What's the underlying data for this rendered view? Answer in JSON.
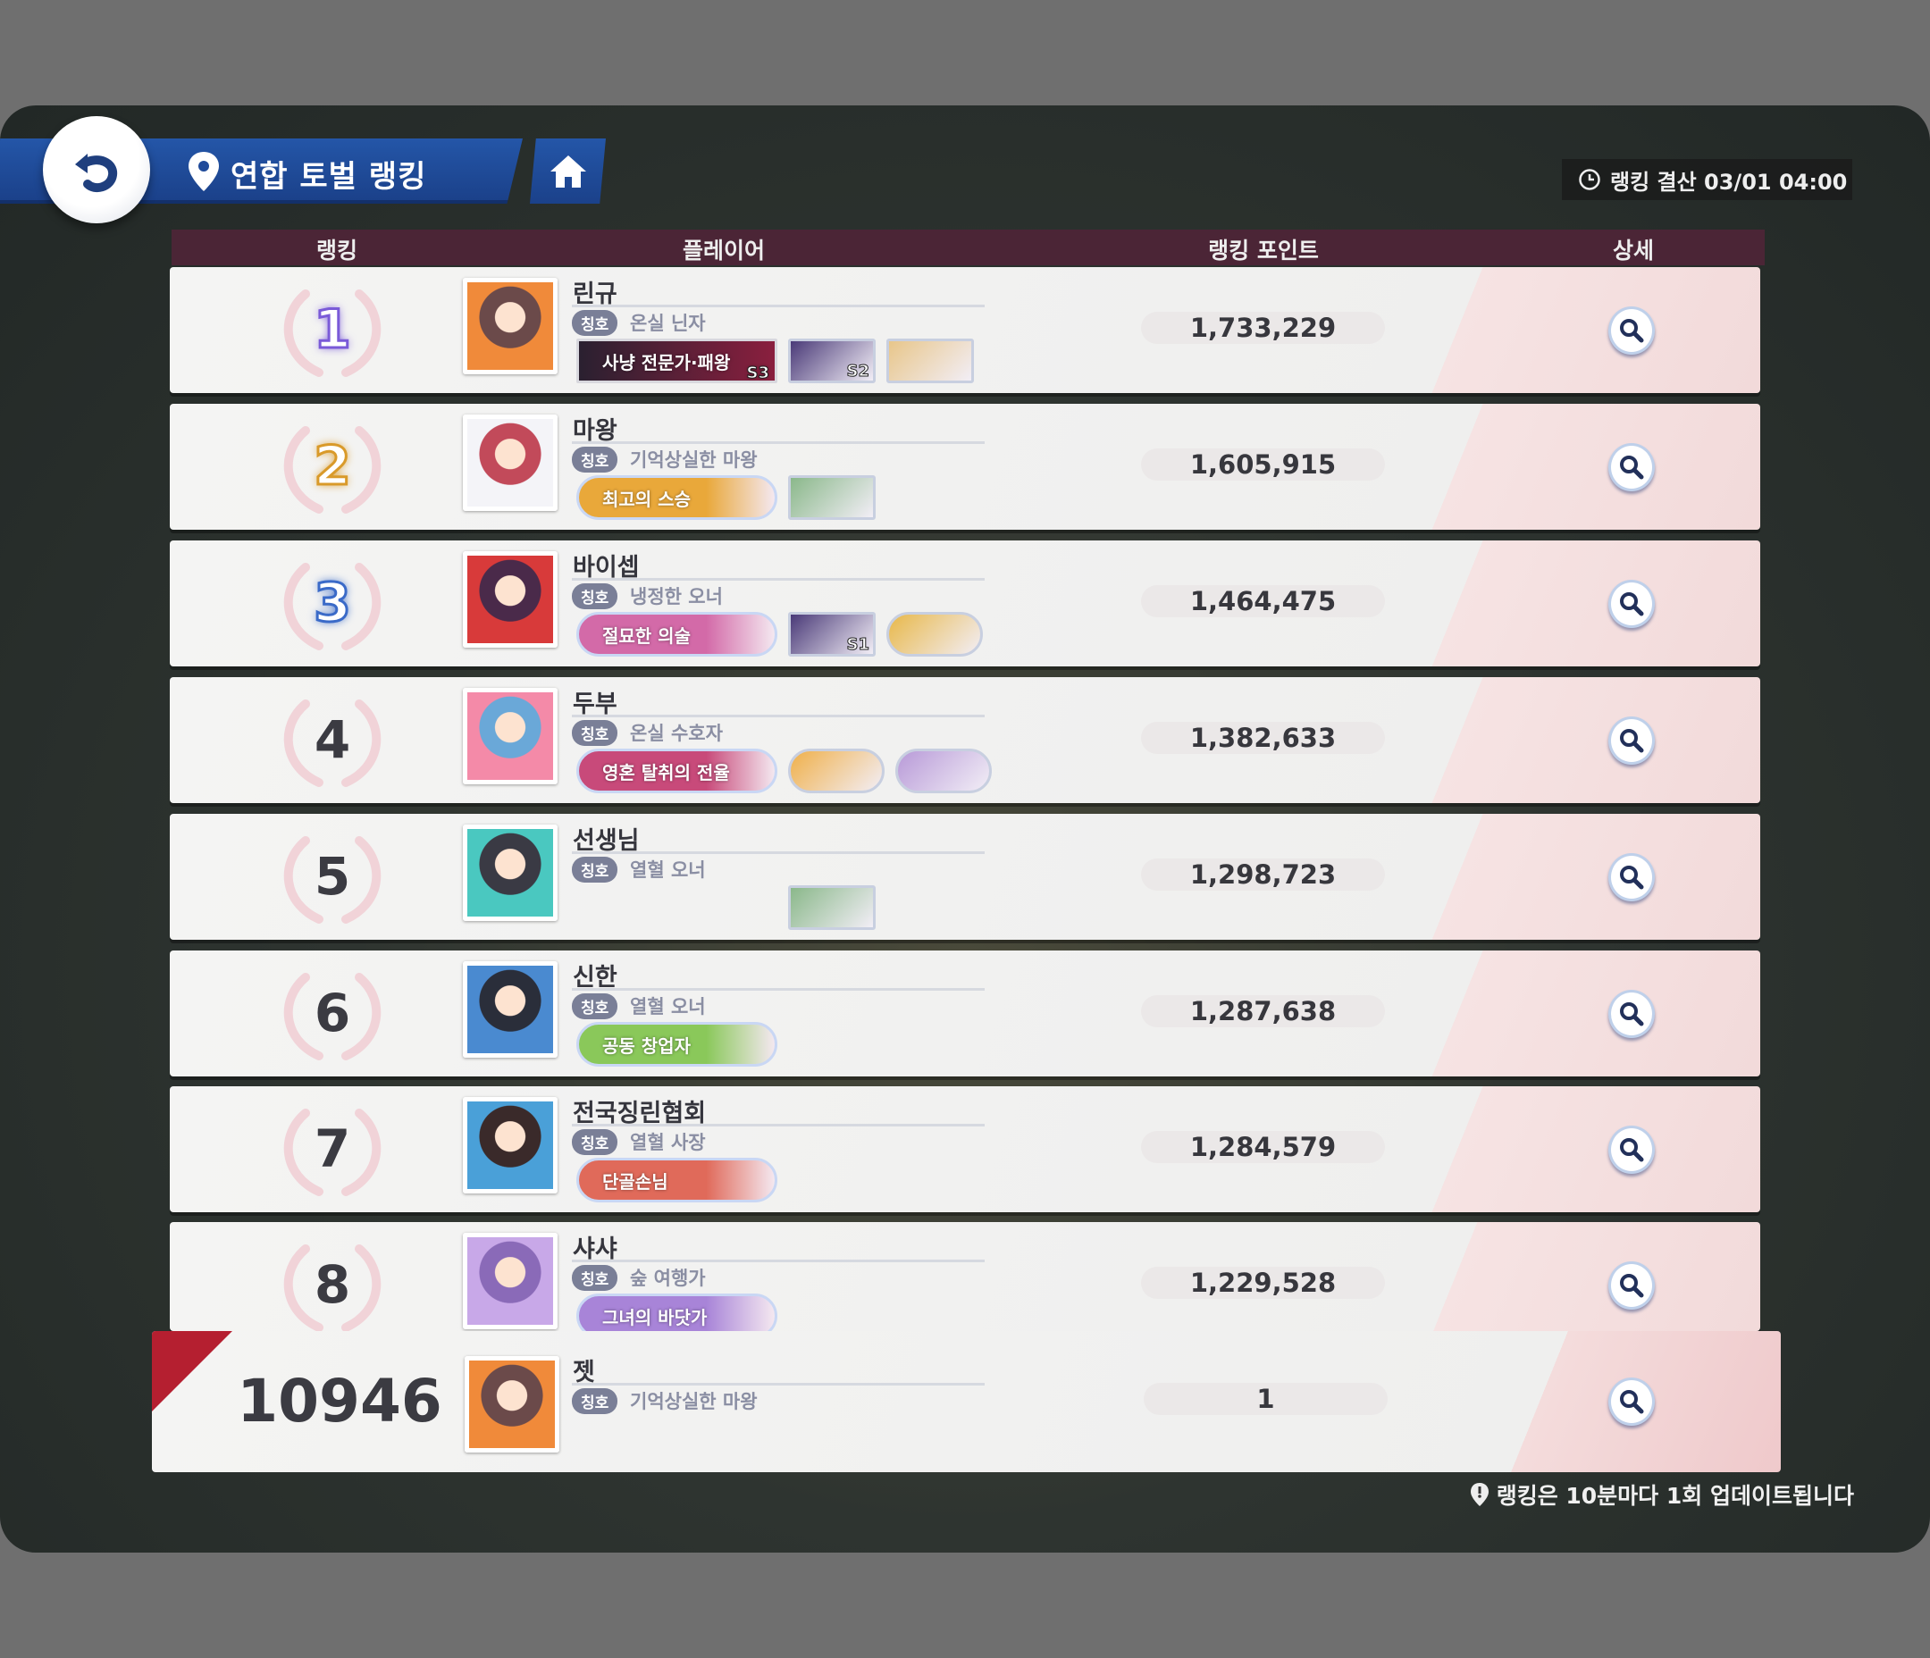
{
  "header": {
    "title": "연합 토벌 랭킹",
    "timer": "랭킹 결산 03/01 04:00"
  },
  "columns": {
    "rank": "랭킹",
    "player": "플레이어",
    "points": "랭킹 포인트",
    "detail": "상세"
  },
  "title_tag": "칭호",
  "colors": {
    "accent_blue": "#1f4a9a",
    "header_maroon": "#4b2536",
    "my_rank_corner": "#b51f30"
  },
  "rows": [
    {
      "rank": "1",
      "medal_color": "#7a5ad8",
      "name": "린규",
      "title": "온실 닌자",
      "points": "1,733,229",
      "avatar": [
        "#f08a3a",
        "#6b4a4a"
      ],
      "badges": [
        {
          "type": "banner-dark",
          "text": "사냥 전문가·패왕",
          "label": "S3"
        },
        {
          "type": "portrait",
          "label": "S2",
          "color": "#4a3a78"
        },
        {
          "type": "portrait",
          "label": "",
          "color": "#e8c68a"
        }
      ]
    },
    {
      "rank": "2",
      "medal_color": "#d99a2a",
      "name": "마왕",
      "title": "기억상실한 마왕",
      "points": "1,605,915",
      "avatar": [
        "#f4f4f8",
        "#c24a5a"
      ],
      "badges": [
        {
          "type": "banner",
          "text": "최고의 스승",
          "color": "#e9a83a"
        },
        {
          "type": "portrait",
          "label": "",
          "color": "#8ab88a"
        }
      ]
    },
    {
      "rank": "3",
      "medal_color": "#3a6ac8",
      "name": "바이셉",
      "title": "냉정한 오너",
      "points": "1,464,475",
      "avatar": [
        "#d83a3a",
        "#4a2a4a"
      ],
      "badges": [
        {
          "type": "banner",
          "text": "절묘한 의술",
          "color": "#d36aa8"
        },
        {
          "type": "portrait",
          "label": "S1",
          "color": "#4a3a78"
        },
        {
          "type": "round",
          "label": "",
          "color": "#e8b84a"
        }
      ]
    },
    {
      "rank": "4",
      "name": "두부",
      "title": "온실 수호자",
      "points": "1,382,633",
      "avatar": [
        "#f48aa8",
        "#6aa8d8"
      ],
      "badges": [
        {
          "type": "banner",
          "text": "영혼 탈취의 전율",
          "color": "#c84a7a"
        },
        {
          "type": "round",
          "label": "",
          "color": "#f0b04a"
        },
        {
          "type": "round",
          "label": "",
          "color": "#b89ad8"
        }
      ]
    },
    {
      "rank": "5",
      "name": "선생님",
      "title": "열혈 오너",
      "points": "1,298,723",
      "avatar": [
        "#4ac8c0",
        "#3a3a44"
      ],
      "badges": [
        {
          "type": "empty"
        },
        {
          "type": "portrait",
          "label": "",
          "color": "#8ab88a"
        }
      ]
    },
    {
      "rank": "6",
      "name": "신한",
      "title": "열혈 오너",
      "points": "1,287,638",
      "avatar": [
        "#4a8ad0",
        "#2a2e3a"
      ],
      "badges": [
        {
          "type": "banner",
          "text": "공동 창업자",
          "color": "#8ac85a"
        }
      ]
    },
    {
      "rank": "7",
      "name": "전국징린협회",
      "title": "열혈 사장",
      "points": "1,284,579",
      "avatar": [
        "#4aa0d8",
        "#3a2a2a"
      ],
      "badges": [
        {
          "type": "banner",
          "text": "단골손님",
          "color": "#e06a5a"
        }
      ]
    },
    {
      "rank": "8",
      "name": "샤샤",
      "title": "숲 여행가",
      "points": "1,229,528",
      "avatar": [
        "#c8a8e8",
        "#8a6ab8"
      ],
      "badges": [
        {
          "type": "banner",
          "text": "그녀의 바닷가",
          "color": "#a884d8"
        }
      ]
    }
  ],
  "me": {
    "rank": "10946",
    "name": "젯",
    "title": "기억상실한 마왕",
    "points": "1",
    "avatar": [
      "#f08a3a",
      "#6b4a4a"
    ]
  },
  "footer": "랭킹은 10분마다 1회 업데이트됩니다"
}
